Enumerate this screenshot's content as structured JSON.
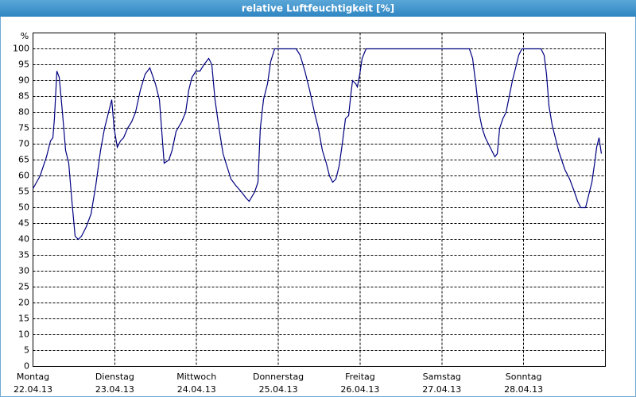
{
  "chart_data": {
    "type": "line",
    "title": "relative Luftfeuchtigkeit [%]",
    "y_label": "%",
    "x": [
      0,
      0.087,
      0.165,
      0.214,
      0.243,
      0.262,
      0.292,
      0.321,
      0.36,
      0.399,
      0.437,
      0.476,
      0.515,
      0.554,
      0.593,
      0.652,
      0.71,
      0.768,
      0.826,
      0.875,
      0.924,
      0.963,
      0.992,
      1.031,
      1.07,
      1.108,
      1.157,
      1.206,
      1.254,
      1.313,
      1.371,
      1.429,
      1.497,
      1.546,
      1.604,
      1.662,
      1.701,
      1.75,
      1.818,
      1.867,
      1.905,
      1.944,
      1.993,
      2.042,
      2.09,
      2.149,
      2.187,
      2.226,
      2.275,
      2.324,
      2.372,
      2.421,
      2.479,
      2.547,
      2.606,
      2.644,
      2.712,
      2.751,
      2.78,
      2.819,
      2.868,
      2.907,
      2.955,
      3.004,
      3.15,
      3.218,
      3.267,
      3.325,
      3.383,
      3.442,
      3.49,
      3.539,
      3.587,
      3.626,
      3.665,
      3.704,
      3.743,
      3.782,
      3.821,
      3.86,
      3.889,
      3.908,
      3.947,
      3.967,
      3.996,
      4.025,
      4.073,
      4.171,
      4.54,
      5.046,
      5.337,
      5.376,
      5.415,
      5.454,
      5.493,
      5.532,
      5.571,
      5.61,
      5.649,
      5.678,
      5.707,
      5.746,
      5.785,
      5.824,
      5.863,
      5.902,
      5.94,
      5.979,
      6.067,
      6.212,
      6.251,
      6.28,
      6.31,
      6.349,
      6.388,
      6.426,
      6.465,
      6.504,
      6.563,
      6.621,
      6.66,
      6.699,
      6.757,
      6.796,
      6.835,
      6.874,
      6.893,
      6.922,
      6.951
    ],
    "values": [
      56,
      60,
      66,
      71,
      72,
      78,
      93,
      91,
      80,
      68,
      64,
      52,
      41,
      40,
      41,
      44,
      48,
      57,
      68,
      75,
      80,
      84,
      75,
      69,
      71,
      72,
      75,
      77,
      80,
      87,
      92,
      94,
      89,
      84,
      64,
      65,
      68,
      74,
      77,
      80,
      87,
      91,
      93,
      93,
      95,
      97,
      95,
      84,
      75,
      67,
      63,
      59,
      57,
      55,
      53,
      52,
      55,
      58,
      75,
      84,
      89,
      96,
      100,
      100,
      100,
      100,
      98,
      93,
      87,
      80,
      75,
      68,
      64,
      60,
      58,
      59,
      63,
      70,
      78,
      79,
      86,
      90,
      89,
      88,
      92,
      97,
      100,
      100,
      100,
      100,
      100,
      97,
      89,
      80,
      75,
      72,
      70,
      68,
      66,
      67,
      75,
      78,
      80,
      85,
      90,
      94,
      98,
      100,
      100,
      100,
      98,
      92,
      82,
      76,
      72,
      68,
      65,
      62,
      59,
      55,
      52,
      50,
      50,
      54,
      58,
      65,
      69,
      72,
      67
    ],
    "color": "#000080",
    "xlim": [
      0,
      7
    ],
    "xticks": [
      {
        "value": 0,
        "label": [
          "Montag",
          "22.04.13"
        ]
      },
      {
        "value": 1,
        "label": [
          "Dienstag",
          "23.04.13"
        ]
      },
      {
        "value": 2,
        "label": [
          "Mittwoch",
          "24.04.13"
        ]
      },
      {
        "value": 3,
        "label": [
          "Donnerstag",
          "25.04.13"
        ]
      },
      {
        "value": 4,
        "label": [
          "Freitag",
          "26.04.13"
        ]
      },
      {
        "value": 5,
        "label": [
          "Samstag",
          "27.04.13"
        ]
      },
      {
        "value": 6,
        "label": [
          "Sonntag",
          "28.04.13"
        ]
      }
    ],
    "ylim": [
      0,
      105
    ],
    "yticks": [
      0,
      5,
      10,
      15,
      20,
      25,
      30,
      35,
      40,
      45,
      50,
      55,
      60,
      65,
      70,
      75,
      80,
      85,
      90,
      95,
      100
    ],
    "grid": true
  }
}
